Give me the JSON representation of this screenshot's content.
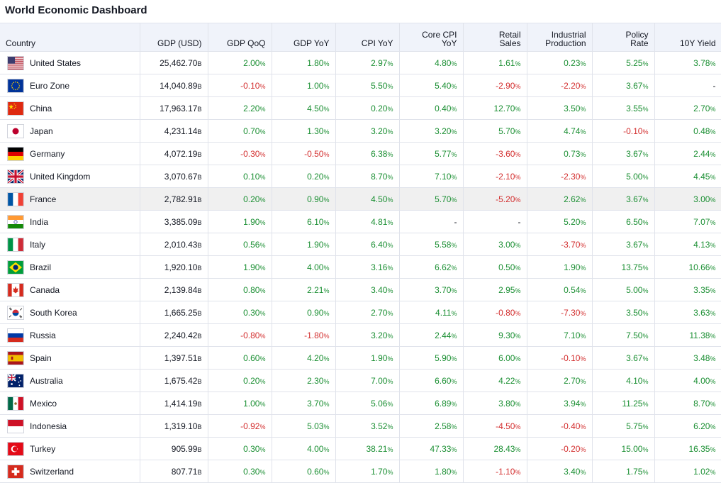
{
  "title": "World Economic Dashboard",
  "headers": [
    {
      "key": "country",
      "line1": "Country",
      "line2": ""
    },
    {
      "key": "gdp",
      "line1": "GDP (USD)",
      "line2": ""
    },
    {
      "key": "gdp_qoq",
      "line1": "GDP QoQ",
      "line2": ""
    },
    {
      "key": "gdp_yoy",
      "line1": "GDP YoY",
      "line2": ""
    },
    {
      "key": "cpi_yoy",
      "line1": "CPI YoY",
      "line2": ""
    },
    {
      "key": "core_cpi",
      "line1": "Core CPI",
      "line2": "YoY"
    },
    {
      "key": "retail",
      "line1": "Retail",
      "line2": "Sales"
    },
    {
      "key": "industrial",
      "line1": "Industrial",
      "line2": "Production"
    },
    {
      "key": "policy",
      "line1": "Policy",
      "line2": "Rate"
    },
    {
      "key": "yield10",
      "line1": "10Y Yield",
      "line2": ""
    }
  ],
  "units": {
    "billion": "B",
    "percent": "%"
  },
  "dash": "-",
  "highlight_row": "France",
  "rows": [
    {
      "country": "United States",
      "flag": "us-flag-icon",
      "gdp": "25,462.70",
      "vals": [
        "2.00",
        "1.80",
        "2.97",
        "4.80",
        "1.61",
        "0.23",
        "5.25",
        "3.78"
      ]
    },
    {
      "country": "Euro Zone",
      "flag": "eu-flag-icon",
      "gdp": "14,040.89",
      "vals": [
        "-0.10",
        "1.00",
        "5.50",
        "5.40",
        "-2.90",
        "-2.20",
        "3.67",
        "-"
      ]
    },
    {
      "country": "China",
      "flag": "cn-flag-icon",
      "gdp": "17,963.17",
      "vals": [
        "2.20",
        "4.50",
        "0.20",
        "0.40",
        "12.70",
        "3.50",
        "3.55",
        "2.70"
      ]
    },
    {
      "country": "Japan",
      "flag": "jp-flag-icon",
      "gdp": "4,231.14",
      "vals": [
        "0.70",
        "1.30",
        "3.20",
        "3.20",
        "5.70",
        "4.74",
        "-0.10",
        "0.48"
      ]
    },
    {
      "country": "Germany",
      "flag": "de-flag-icon",
      "gdp": "4,072.19",
      "vals": [
        "-0.30",
        "-0.50",
        "6.38",
        "5.77",
        "-3.60",
        "0.73",
        "3.67",
        "2.44"
      ]
    },
    {
      "country": "United Kingdom",
      "flag": "gb-flag-icon",
      "gdp": "3,070.67",
      "vals": [
        "0.10",
        "0.20",
        "8.70",
        "7.10",
        "-2.10",
        "-2.30",
        "5.00",
        "4.45"
      ]
    },
    {
      "country": "France",
      "flag": "fr-flag-icon",
      "gdp": "2,782.91",
      "vals": [
        "0.20",
        "0.90",
        "4.50",
        "5.70",
        "-5.20",
        "2.62",
        "3.67",
        "3.00"
      ]
    },
    {
      "country": "India",
      "flag": "in-flag-icon",
      "gdp": "3,385.09",
      "vals": [
        "1.90",
        "6.10",
        "4.81",
        "-",
        "-",
        "5.20",
        "6.50",
        "7.07"
      ]
    },
    {
      "country": "Italy",
      "flag": "it-flag-icon",
      "gdp": "2,010.43",
      "vals": [
        "0.56",
        "1.90",
        "6.40",
        "5.58",
        "3.00",
        "-3.70",
        "3.67",
        "4.13"
      ]
    },
    {
      "country": "Brazil",
      "flag": "br-flag-icon",
      "gdp": "1,920.10",
      "vals": [
        "1.90",
        "4.00",
        "3.16",
        "6.62",
        "0.50",
        "1.90",
        "13.75",
        "10.66"
      ]
    },
    {
      "country": "Canada",
      "flag": "ca-flag-icon",
      "gdp": "2,139.84",
      "vals": [
        "0.80",
        "2.21",
        "3.40",
        "3.70",
        "2.95",
        "0.54",
        "5.00",
        "3.35"
      ]
    },
    {
      "country": "South Korea",
      "flag": "kr-flag-icon",
      "gdp": "1,665.25",
      "vals": [
        "0.30",
        "0.90",
        "2.70",
        "4.11",
        "-0.80",
        "-7.30",
        "3.50",
        "3.63"
      ]
    },
    {
      "country": "Russia",
      "flag": "ru-flag-icon",
      "gdp": "2,240.42",
      "vals": [
        "-0.80",
        "-1.80",
        "3.20",
        "2.44",
        "9.30",
        "7.10",
        "7.50",
        "11.38"
      ]
    },
    {
      "country": "Spain",
      "flag": "es-flag-icon",
      "gdp": "1,397.51",
      "vals": [
        "0.60",
        "4.20",
        "1.90",
        "5.90",
        "6.00",
        "-0.10",
        "3.67",
        "3.48"
      ]
    },
    {
      "country": "Australia",
      "flag": "au-flag-icon",
      "gdp": "1,675.42",
      "vals": [
        "0.20",
        "2.30",
        "7.00",
        "6.60",
        "4.22",
        "2.70",
        "4.10",
        "4.00"
      ]
    },
    {
      "country": "Mexico",
      "flag": "mx-flag-icon",
      "gdp": "1,414.19",
      "vals": [
        "1.00",
        "3.70",
        "5.06",
        "6.89",
        "3.80",
        "3.94",
        "11.25",
        "8.70"
      ]
    },
    {
      "country": "Indonesia",
      "flag": "id-flag-icon",
      "gdp": "1,319.10",
      "vals": [
        "-0.92",
        "5.03",
        "3.52",
        "2.58",
        "-4.50",
        "-0.40",
        "5.75",
        "6.20"
      ]
    },
    {
      "country": "Turkey",
      "flag": "tr-flag-icon",
      "gdp": "905.99",
      "vals": [
        "0.30",
        "4.00",
        "38.21",
        "47.33",
        "28.43",
        "-0.20",
        "15.00",
        "16.35"
      ]
    },
    {
      "country": "Switzerland",
      "flag": "ch-flag-icon",
      "gdp": "807.71",
      "vals": [
        "0.30",
        "0.60",
        "1.70",
        "1.80",
        "-1.10",
        "3.40",
        "1.75",
        "1.02"
      ]
    }
  ],
  "colors": {
    "positive": "#1b8f33",
    "negative": "#d32f2f",
    "header_bg": "#f0f3fa"
  }
}
